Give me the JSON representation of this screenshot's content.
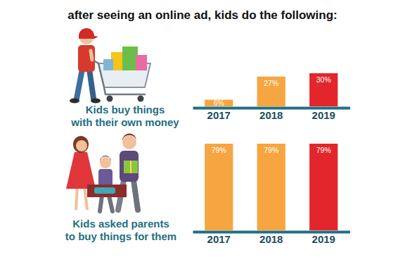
{
  "title": "after seeing an online ad, kids do the following:",
  "chart_data": [
    {
      "type": "bar",
      "title": "Kids buy things\nwith their own money",
      "categories": [
        "2017",
        "2018",
        "2019"
      ],
      "values": [
        6,
        27,
        30
      ],
      "value_labels": [
        "6%",
        "27%",
        "30%"
      ],
      "colors": [
        "#f6a541",
        "#f6a541",
        "#e2262b"
      ],
      "ylim": [
        0,
        30
      ],
      "data_labels": true,
      "tick_labels": "x"
    },
    {
      "type": "bar",
      "title": "Kids asked parents\nto buy things for them",
      "categories": [
        "2017",
        "2018",
        "2019"
      ],
      "values": [
        79,
        79,
        79
      ],
      "value_labels": [
        "79%",
        "79%",
        "79%"
      ],
      "colors": [
        "#f6a541",
        "#f6a541",
        "#e2262b"
      ],
      "ylim": [
        0,
        79
      ],
      "data_labels": true,
      "tick_labels": "x"
    }
  ]
}
